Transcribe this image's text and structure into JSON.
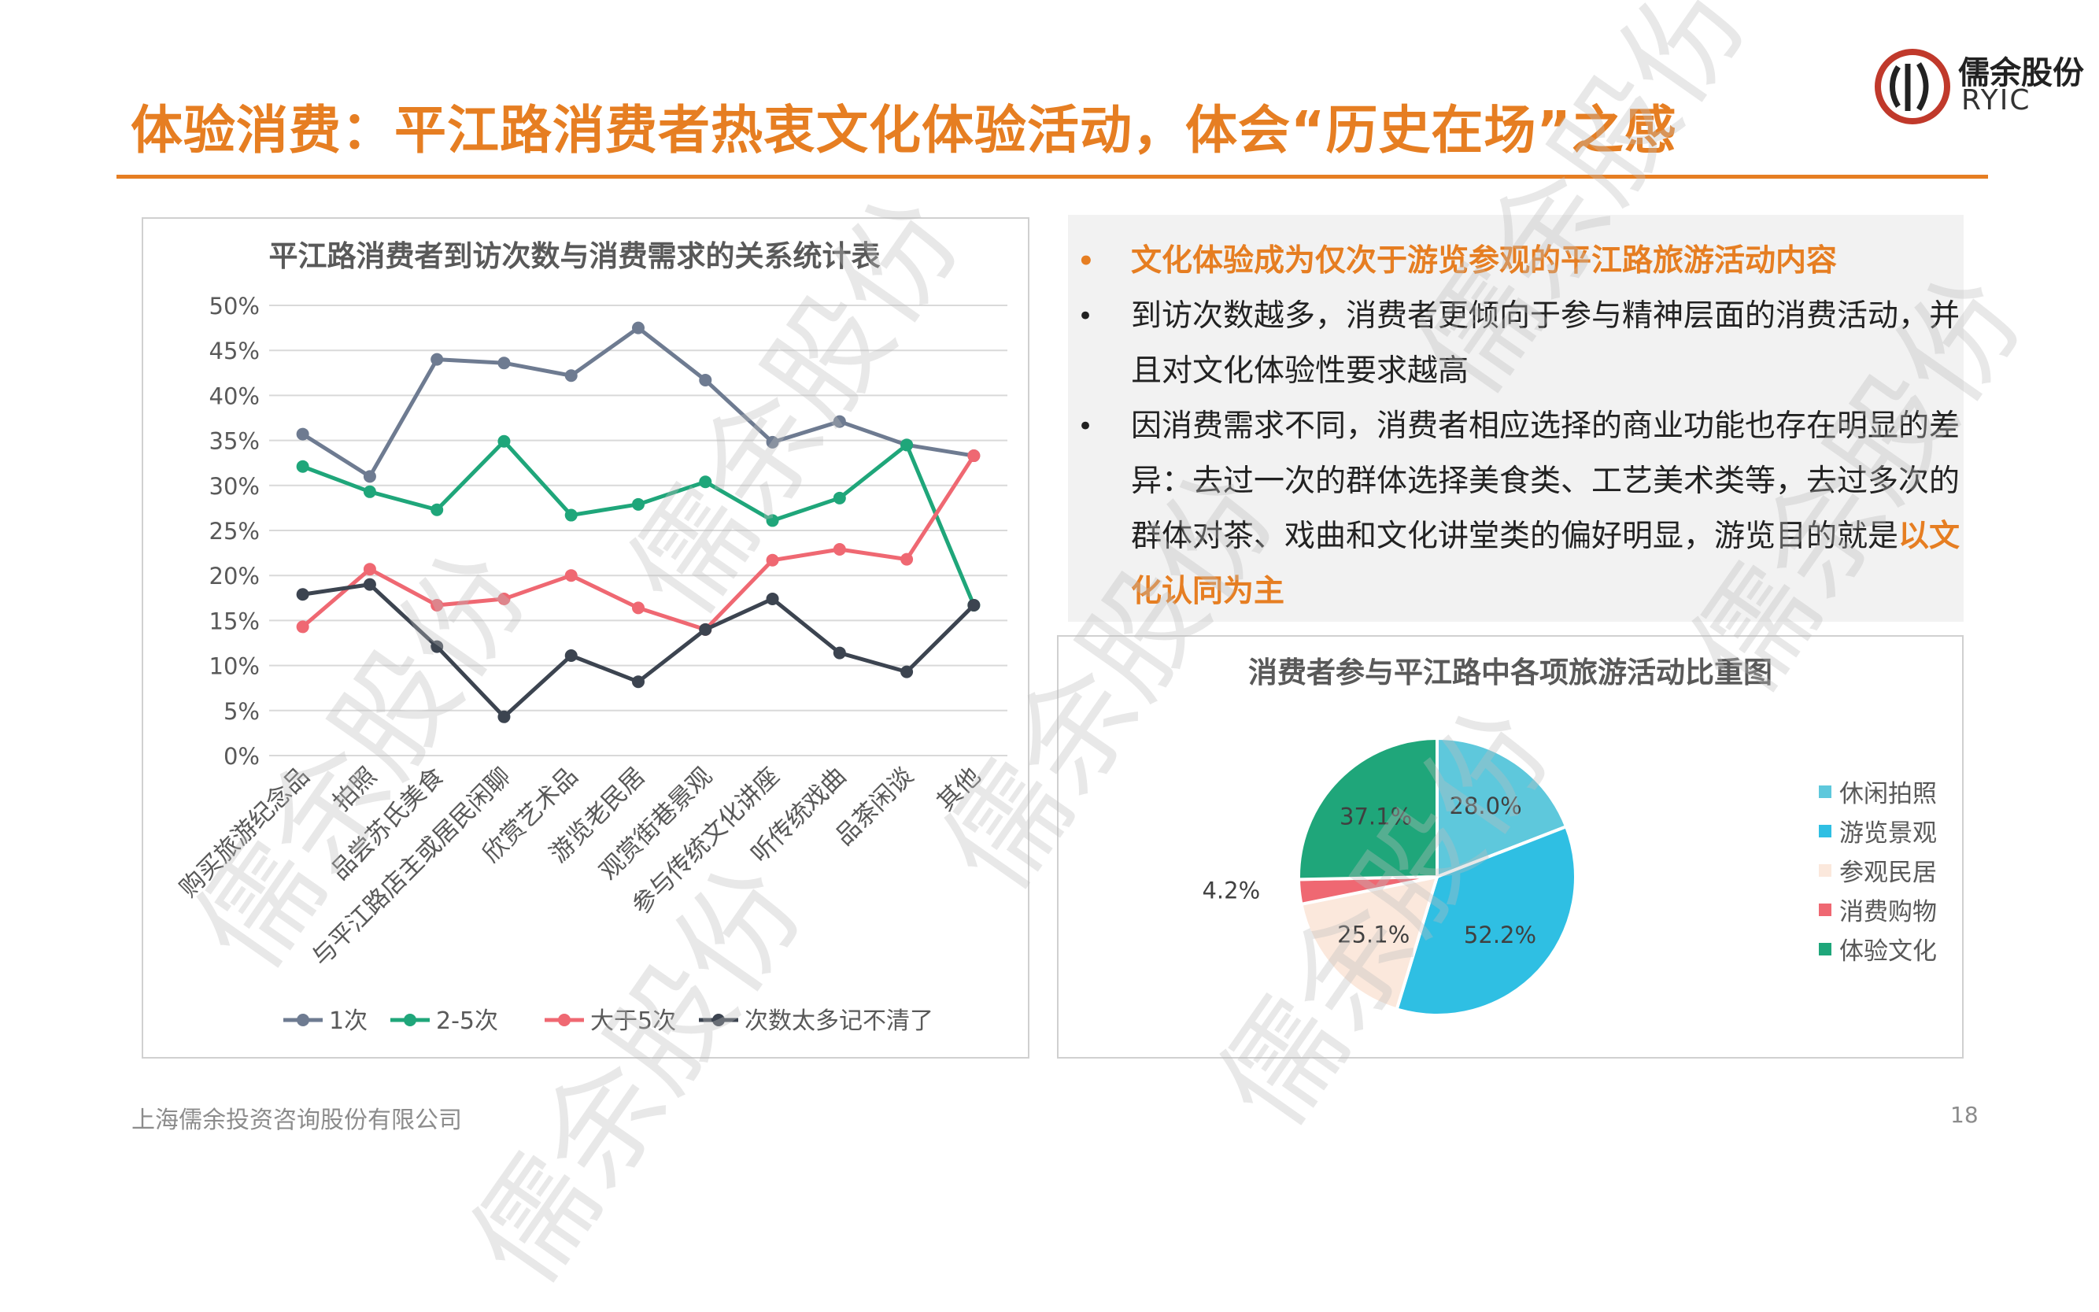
{
  "slide": {
    "title": "体验消费：平江路消费者热衷文化体验活动，体会“历史在场”之感",
    "logo_text": "儒余股份",
    "logo_sub": "RYIC",
    "footer": "上海儒余投资咨询股份有限公司",
    "page_number": "18",
    "watermark": "儒余股份",
    "accent_color": "#e67e22"
  },
  "bullets": [
    {
      "text": "文化体验成为仅次于游览参观的平江路旅游活动内容",
      "highlight": true
    },
    {
      "text": "到访次数越多，消费者更倾向于参与精神层面的消费活动，并且对文化体验性要求越高",
      "highlight": false
    },
    {
      "text_before": "因消费需求不同，消费者相应选择的商业功能也存在明显的差异：去过一次的群体选择美食类、工艺美术类等，去过多次的群体对茶、戏曲和文化讲堂类的偏好明显，游览目的就是",
      "text_emph": "以文化认同为主",
      "highlight": false
    }
  ],
  "chart_data": [
    {
      "type": "line",
      "title": "平江路消费者到访次数与消费需求的关系统计表",
      "categories": [
        "购买旅游纪念品",
        "拍照",
        "品尝苏氏美食",
        "与平江路店主或居民闲聊",
        "欣赏艺术品",
        "游览老民居",
        "观赏街巷景观",
        "参与传统文化讲座",
        "听传统戏曲",
        "品茶闲谈",
        "其他"
      ],
      "y_ticks": [
        "50%",
        "45%",
        "40%",
        "35%",
        "30%",
        "25%",
        "20%",
        "15%",
        "10%",
        "5%",
        "0%"
      ],
      "ylim": [
        0,
        50
      ],
      "grid": true,
      "legend_position": "bottom",
      "series": [
        {
          "name": "1次",
          "color": "#6e7b91",
          "values": [
            35.7,
            31,
            44,
            43.6,
            42.2,
            47.5,
            41.7,
            34.8,
            37.1,
            34.5,
            33.3
          ]
        },
        {
          "name": "2-5次",
          "color": "#1fa67a",
          "values": [
            32.1,
            29.3,
            27.3,
            34.9,
            26.7,
            27.9,
            30.4,
            26.1,
            28.6,
            34.5,
            16.7
          ]
        },
        {
          "name": "大于5次",
          "color": "#ef6872",
          "values": [
            14.3,
            20.7,
            16.7,
            17.4,
            20,
            16.4,
            14,
            21.7,
            22.9,
            21.8,
            33.3
          ]
        },
        {
          "name": "次数太多记不清了",
          "color": "#3c4450",
          "values": [
            17.9,
            19,
            12.1,
            4.3,
            11.1,
            8.2,
            14,
            17.4,
            11.4,
            9.3,
            16.7
          ]
        }
      ]
    },
    {
      "type": "pie",
      "title": "消费者参与平江路中各项旅游活动比重图",
      "legend_position": "right",
      "slices": [
        {
          "name": "休闲拍照",
          "value": 28.0,
          "label": "28.0%",
          "color": "#5ec8dc"
        },
        {
          "name": "游览景观",
          "value": 52.2,
          "label": "52.2%",
          "color": "#2fbfe3"
        },
        {
          "name": "参观民居",
          "value": 25.1,
          "label": "25.1%",
          "color": "#fbe8dc"
        },
        {
          "name": "消费购物",
          "value": 4.2,
          "label": "4.2%",
          "color": "#ef6872"
        },
        {
          "name": "体验文化",
          "value": 37.1,
          "label": "37.1%",
          "color": "#1fa67a"
        }
      ]
    }
  ]
}
